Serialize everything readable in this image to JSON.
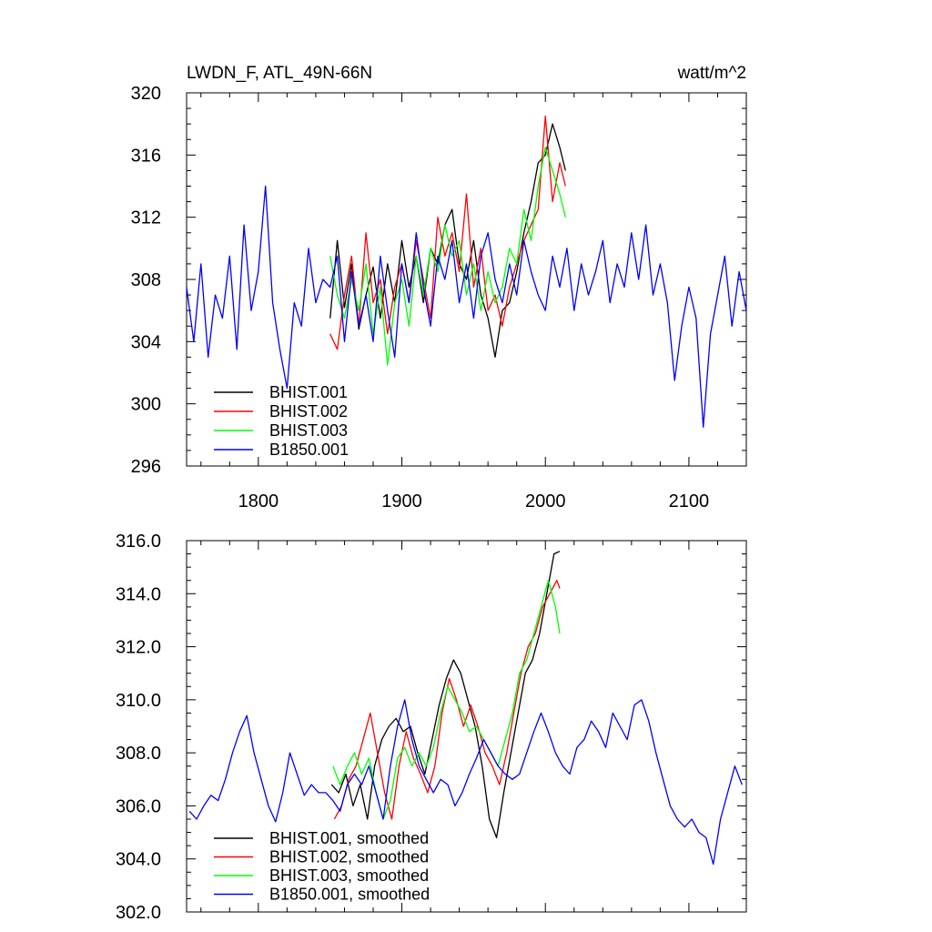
{
  "chart_data": [
    {
      "type": "line",
      "title": "LWDN_F, ATL_49N-66N",
      "units": "watt/m^2",
      "xlabel": "",
      "ylabel": "",
      "xlim": [
        1750,
        2140
      ],
      "ylim": [
        296,
        320
      ],
      "x_ticks": [
        1800,
        1900,
        2000,
        2100
      ],
      "x_tick_labels": [
        "1800",
        "1900",
        "2000",
        "2100"
      ],
      "y_ticks": [
        296,
        300,
        304,
        308,
        312,
        316,
        320
      ],
      "y_tick_labels": [
        "296",
        "300",
        "304",
        "308",
        "312",
        "316",
        "320"
      ],
      "grid": false,
      "legend_position": "bottom-left",
      "series": [
        {
          "name": "BHIST.001",
          "color": "#000000",
          "x": [
            1850,
            1855,
            1860,
            1865,
            1870,
            1875,
            1880,
            1885,
            1890,
            1895,
            1900,
            1905,
            1910,
            1915,
            1920,
            1925,
            1930,
            1935,
            1940,
            1945,
            1950,
            1955,
            1960,
            1965,
            1970,
            1975,
            1980,
            1985,
            1990,
            1995,
            2000,
            2005,
            2010,
            2014
          ],
          "y": [
            305.5,
            310.5,
            306.2,
            309.0,
            304.8,
            307.0,
            308.8,
            305.5,
            309.0,
            306.5,
            310.5,
            307.5,
            309.5,
            306.5,
            310.0,
            309.0,
            311.5,
            312.5,
            309.0,
            308.0,
            310.5,
            307.0,
            305.5,
            303.0,
            306.0,
            306.5,
            308.5,
            311.0,
            313.0,
            315.5,
            316.0,
            318.0,
            316.5,
            315.0
          ]
        },
        {
          "name": "BHIST.002",
          "color": "#ff0000",
          "x": [
            1850,
            1855,
            1860,
            1865,
            1870,
            1875,
            1880,
            1885,
            1890,
            1895,
            1900,
            1905,
            1910,
            1915,
            1920,
            1925,
            1930,
            1935,
            1940,
            1945,
            1950,
            1955,
            1960,
            1965,
            1970,
            1975,
            1980,
            1985,
            1990,
            1995,
            2000,
            2005,
            2010,
            2014
          ],
          "y": [
            304.5,
            303.5,
            307.0,
            309.5,
            305.0,
            311.0,
            306.5,
            308.0,
            304.5,
            307.5,
            309.0,
            306.5,
            310.5,
            308.0,
            305.5,
            312.0,
            309.5,
            311.0,
            308.5,
            313.5,
            307.5,
            310.0,
            306.0,
            307.0,
            305.0,
            307.5,
            309.0,
            310.5,
            311.5,
            312.5,
            318.5,
            313.0,
            315.5,
            314.0
          ]
        },
        {
          "name": "BHIST.003",
          "color": "#00ff00",
          "x": [
            1850,
            1855,
            1860,
            1865,
            1870,
            1875,
            1880,
            1885,
            1890,
            1895,
            1900,
            1905,
            1910,
            1915,
            1920,
            1925,
            1930,
            1935,
            1940,
            1945,
            1950,
            1955,
            1960,
            1965,
            1970,
            1975,
            1980,
            1985,
            1990,
            1995,
            2000,
            2005,
            2010,
            2014
          ],
          "y": [
            309.5,
            307.0,
            305.5,
            308.0,
            306.0,
            309.0,
            304.5,
            307.5,
            302.5,
            306.5,
            308.0,
            305.0,
            309.5,
            307.0,
            310.0,
            308.5,
            311.5,
            309.5,
            310.5,
            307.0,
            309.0,
            306.0,
            308.5,
            306.5,
            307.5,
            310.0,
            309.0,
            312.5,
            310.5,
            314.0,
            316.5,
            315.0,
            313.5,
            312.0
          ]
        },
        {
          "name": "B1850.001",
          "color": "#0000ff",
          "x": [
            1750,
            1755,
            1760,
            1765,
            1770,
            1775,
            1780,
            1785,
            1790,
            1795,
            1800,
            1805,
            1810,
            1815,
            1820,
            1825,
            1830,
            1835,
            1840,
            1845,
            1850,
            1855,
            1860,
            1865,
            1870,
            1875,
            1880,
            1885,
            1890,
            1895,
            1900,
            1905,
            1910,
            1915,
            1920,
            1925,
            1930,
            1935,
            1940,
            1945,
            1950,
            1955,
            1960,
            1965,
            1970,
            1975,
            1980,
            1985,
            1990,
            1995,
            2000,
            2005,
            2010,
            2015,
            2020,
            2025,
            2030,
            2035,
            2040,
            2045,
            2050,
            2055,
            2060,
            2065,
            2070,
            2075,
            2080,
            2085,
            2090,
            2095,
            2100,
            2105,
            2110,
            2115,
            2120,
            2125,
            2130,
            2135,
            2140
          ],
          "y": [
            307.5,
            304.0,
            309.0,
            303.0,
            307.0,
            305.5,
            309.5,
            303.5,
            311.5,
            306.0,
            308.5,
            314.0,
            306.5,
            303.5,
            301.0,
            306.5,
            305.0,
            310.0,
            306.5,
            308.0,
            307.5,
            309.5,
            304.0,
            308.5,
            305.0,
            307.0,
            304.0,
            309.5,
            306.0,
            303.0,
            309.0,
            306.5,
            311.0,
            307.5,
            305.0,
            309.5,
            308.0,
            310.5,
            306.5,
            309.0,
            305.5,
            309.5,
            311.0,
            308.0,
            306.5,
            309.0,
            307.0,
            310.5,
            308.5,
            307.0,
            306.0,
            309.5,
            307.5,
            310.0,
            306.0,
            309.0,
            307.0,
            308.5,
            310.5,
            306.5,
            309.0,
            307.5,
            311.0,
            308.0,
            311.5,
            307.0,
            309.0,
            306.5,
            301.5,
            305.0,
            307.5,
            305.5,
            298.5,
            304.5,
            307.0,
            309.5,
            305.0,
            308.5,
            306.0
          ]
        }
      ]
    },
    {
      "type": "line",
      "title": "",
      "xlabel": "",
      "ylabel": "",
      "xlim": [
        1750,
        2140
      ],
      "ylim": [
        302,
        316
      ],
      "x_ticks": [
        1800,
        1900,
        2000,
        2100
      ],
      "y_ticks": [
        302,
        304,
        306,
        308,
        310,
        312,
        314,
        316
      ],
      "y_tick_labels": [
        "302.0",
        "304.0",
        "306.0",
        "308.0",
        "310.0",
        "312.0",
        "314.0",
        "316.0"
      ],
      "grid": false,
      "legend_position": "bottom-left",
      "series": [
        {
          "name": "BHIST.001, smoothed",
          "color": "#000000",
          "x": [
            1851,
            1856,
            1861,
            1866,
            1871,
            1876,
            1881,
            1886,
            1891,
            1896,
            1901,
            1906,
            1911,
            1916,
            1921,
            1926,
            1931,
            1936,
            1941,
            1946,
            1951,
            1956,
            1961,
            1966,
            1971,
            1976,
            1981,
            1986,
            1991,
            1996,
            2001,
            2006,
            2010
          ],
          "y": [
            306.8,
            306.5,
            307.2,
            306.0,
            306.8,
            305.5,
            307.5,
            308.5,
            309.0,
            309.3,
            308.8,
            309.0,
            308.0,
            307.2,
            308.5,
            309.8,
            310.8,
            311.5,
            311.0,
            310.0,
            309.0,
            307.5,
            305.5,
            304.8,
            306.5,
            308.0,
            309.5,
            311.0,
            311.5,
            312.5,
            314.0,
            315.5,
            315.6
          ]
        },
        {
          "name": "BHIST.002, smoothed",
          "color": "#ff0000",
          "x": [
            1853,
            1858,
            1863,
            1868,
            1873,
            1878,
            1883,
            1888,
            1893,
            1898,
            1903,
            1908,
            1913,
            1918,
            1923,
            1928,
            1933,
            1938,
            1943,
            1948,
            1953,
            1958,
            1963,
            1968,
            1973,
            1978,
            1983,
            1988,
            1993,
            1998,
            2003,
            2008,
            2010
          ],
          "y": [
            305.5,
            306.0,
            307.0,
            307.5,
            308.5,
            309.5,
            308.0,
            306.5,
            305.5,
            307.5,
            308.8,
            307.8,
            307.2,
            306.5,
            307.5,
            309.5,
            310.8,
            310.0,
            309.0,
            309.8,
            309.0,
            308.0,
            307.5,
            306.8,
            308.0,
            309.5,
            311.0,
            312.0,
            312.5,
            313.5,
            314.0,
            314.5,
            314.2
          ]
        },
        {
          "name": "BHIST.003, smoothed",
          "color": "#00ff00",
          "x": [
            1852,
            1857,
            1862,
            1867,
            1872,
            1877,
            1882,
            1887,
            1892,
            1897,
            1902,
            1907,
            1912,
            1917,
            1922,
            1927,
            1932,
            1937,
            1942,
            1947,
            1952,
            1957,
            1962,
            1967,
            1972,
            1977,
            1982,
            1987,
            1992,
            1997,
            2002,
            2007,
            2010
          ],
          "y": [
            307.5,
            306.8,
            307.5,
            308.0,
            307.2,
            307.8,
            306.5,
            305.5,
            306.2,
            307.8,
            308.2,
            307.5,
            308.0,
            307.5,
            308.2,
            309.5,
            310.5,
            310.0,
            309.5,
            308.8,
            309.0,
            308.5,
            308.0,
            307.5,
            308.5,
            309.5,
            311.0,
            311.5,
            312.5,
            313.5,
            314.5,
            313.5,
            312.5
          ]
        },
        {
          "name": "B1850.001, smoothed",
          "color": "#0000ff",
          "x": [
            1752,
            1757,
            1762,
            1767,
            1772,
            1777,
            1782,
            1787,
            1792,
            1797,
            1802,
            1807,
            1812,
            1817,
            1822,
            1827,
            1832,
            1837,
            1842,
            1847,
            1852,
            1857,
            1862,
            1867,
            1872,
            1877,
            1882,
            1887,
            1892,
            1897,
            1902,
            1907,
            1912,
            1917,
            1922,
            1927,
            1932,
            1937,
            1942,
            1947,
            1952,
            1957,
            1962,
            1967,
            1972,
            1977,
            1982,
            1987,
            1992,
            1997,
            2002,
            2007,
            2012,
            2017,
            2022,
            2027,
            2032,
            2037,
            2042,
            2047,
            2052,
            2057,
            2062,
            2067,
            2072,
            2077,
            2082,
            2087,
            2092,
            2097,
            2102,
            2107,
            2112,
            2117,
            2122,
            2127,
            2132,
            2137
          ],
          "y": [
            305.8,
            305.5,
            306.0,
            306.4,
            306.2,
            307.0,
            308.0,
            308.8,
            309.4,
            308.0,
            307.0,
            306.0,
            305.4,
            306.5,
            308.0,
            307.2,
            306.4,
            306.8,
            306.5,
            306.5,
            306.2,
            305.8,
            306.8,
            307.2,
            306.8,
            307.5,
            306.5,
            305.5,
            307.5,
            309.0,
            310.0,
            308.5,
            307.5,
            307.0,
            306.5,
            307.0,
            306.8,
            306.0,
            306.5,
            307.2,
            307.8,
            308.5,
            308.0,
            307.5,
            307.2,
            307.0,
            307.2,
            308.0,
            308.8,
            309.5,
            308.8,
            308.0,
            307.5,
            307.2,
            308.2,
            308.5,
            309.2,
            308.8,
            308.2,
            309.5,
            309.0,
            308.5,
            309.8,
            310.0,
            309.2,
            308.0,
            307.0,
            306.0,
            305.5,
            305.2,
            305.5,
            305.0,
            304.8,
            303.8,
            305.5,
            306.5,
            307.5,
            306.8
          ]
        }
      ]
    }
  ]
}
